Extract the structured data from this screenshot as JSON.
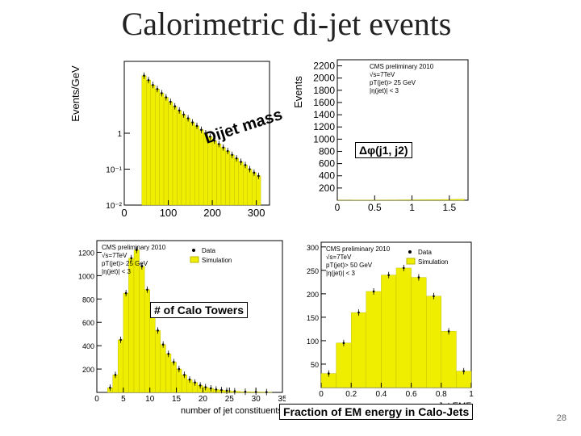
{
  "slide": {
    "title": "Calorimetric di-jet events",
    "page_number": "28"
  },
  "chart_data": [
    {
      "id": "dijet-mass",
      "type": "bar",
      "ylabel": "Events/GeV",
      "log_y": true,
      "y_ticks": [
        "1",
        "10⁻¹",
        "10⁻²"
      ],
      "x_ticks": [
        "0",
        "100",
        "200",
        "300"
      ],
      "xlim": [
        0,
        330
      ],
      "ylim": [
        0.01,
        100
      ],
      "annotation": "Dijet mass",
      "x": [
        45,
        55,
        65,
        75,
        85,
        95,
        105,
        115,
        125,
        135,
        145,
        155,
        165,
        175,
        185,
        195,
        205,
        215,
        225,
        235,
        245,
        255,
        265,
        275,
        285,
        295,
        305
      ],
      "values": [
        40,
        30,
        22,
        17,
        13,
        10,
        7.5,
        5.6,
        4.3,
        3.3,
        2.6,
        2.0,
        1.6,
        1.25,
        1.0,
        0.8,
        0.62,
        0.5,
        0.4,
        0.32,
        0.25,
        0.2,
        0.16,
        0.13,
        0.1,
        0.08,
        0.065
      ]
    },
    {
      "id": "delta-phi",
      "type": "bar",
      "ylabel": "Events",
      "x_ticks": [
        "0",
        "0.5",
        "1",
        "1.5"
      ],
      "y_ticks": [
        "200",
        "400",
        "600",
        "800",
        "1000",
        "1200",
        "1400",
        "1600",
        "1800",
        "2000",
        "2200"
      ],
      "xlim": [
        0,
        1.75
      ],
      "ylim": [
        0,
        2300
      ],
      "legend_text": [
        "CMS preliminary 2010",
        "√s=7TeV",
        "pT(jet)> 25 GeV",
        "|η(jet)| < 3"
      ],
      "annotation": "Δφ(j1, j2)",
      "x": [
        0.05,
        0.15,
        0.25,
        0.35,
        0.45,
        0.55,
        0.65,
        0.75,
        0.85,
        0.95,
        1.05,
        1.15,
        1.25,
        1.35,
        1.45,
        1.55,
        1.65
      ],
      "values": [
        2,
        2,
        3,
        3,
        4,
        4,
        5,
        5,
        6,
        7,
        7,
        8,
        9,
        10,
        12,
        14,
        16
      ]
    },
    {
      "id": "calo-towers",
      "type": "bar",
      "xlabel": "number of jet constituents",
      "x_ticks": [
        "0",
        "5",
        "10",
        "15",
        "20",
        "25",
        "30",
        "35"
      ],
      "y_ticks": [
        "200",
        "400",
        "600",
        "800",
        "1000",
        "1200"
      ],
      "xlim": [
        0,
        35
      ],
      "ylim": [
        0,
        1300
      ],
      "legend_text": [
        "CMS preliminary 2010",
        "√s=7TeV",
        "pT(jet)> 25 GeV",
        "|η(jet)| < 3"
      ],
      "legend_entries": [
        "Data",
        "Simulation"
      ],
      "annotation": "# of Calo Towers",
      "x": [
        2.5,
        3.5,
        4.5,
        5.5,
        6.5,
        7.5,
        8.5,
        9.5,
        10.5,
        11.5,
        12.5,
        13.5,
        14.5,
        15.5,
        16.5,
        17.5,
        18.5,
        19.5,
        20.5,
        21.5,
        22.5,
        23.5,
        24.5,
        26,
        28,
        30,
        32
      ],
      "values": [
        40,
        150,
        450,
        850,
        1150,
        1220,
        1080,
        880,
        700,
        530,
        410,
        330,
        260,
        200,
        150,
        110,
        85,
        60,
        45,
        35,
        25,
        20,
        15,
        10,
        6,
        4,
        3
      ]
    },
    {
      "id": "jet-emf",
      "type": "bar",
      "xlabel": "Jet EMF",
      "x_ticks": [
        "0",
        "0.2",
        "0.4",
        "0.6",
        "0.8",
        "1"
      ],
      "y_ticks": [
        "50",
        "100",
        "150",
        "200",
        "250",
        "300"
      ],
      "xlim": [
        0,
        1
      ],
      "ylim": [
        0,
        310
      ],
      "legend_text": [
        "CMS preliminary 2010",
        "√s=7TeV",
        "pT(jet)> 50 GeV",
        "|η(jet)| < 3"
      ],
      "legend_entries": [
        "Data",
        "Simulation"
      ],
      "annotation": "Fraction of EM energy in Calo-Jets",
      "x": [
        0.05,
        0.15,
        0.25,
        0.35,
        0.45,
        0.55,
        0.65,
        0.75,
        0.85,
        0.95
      ],
      "values": [
        30,
        95,
        160,
        205,
        240,
        255,
        235,
        195,
        120,
        35
      ]
    }
  ]
}
